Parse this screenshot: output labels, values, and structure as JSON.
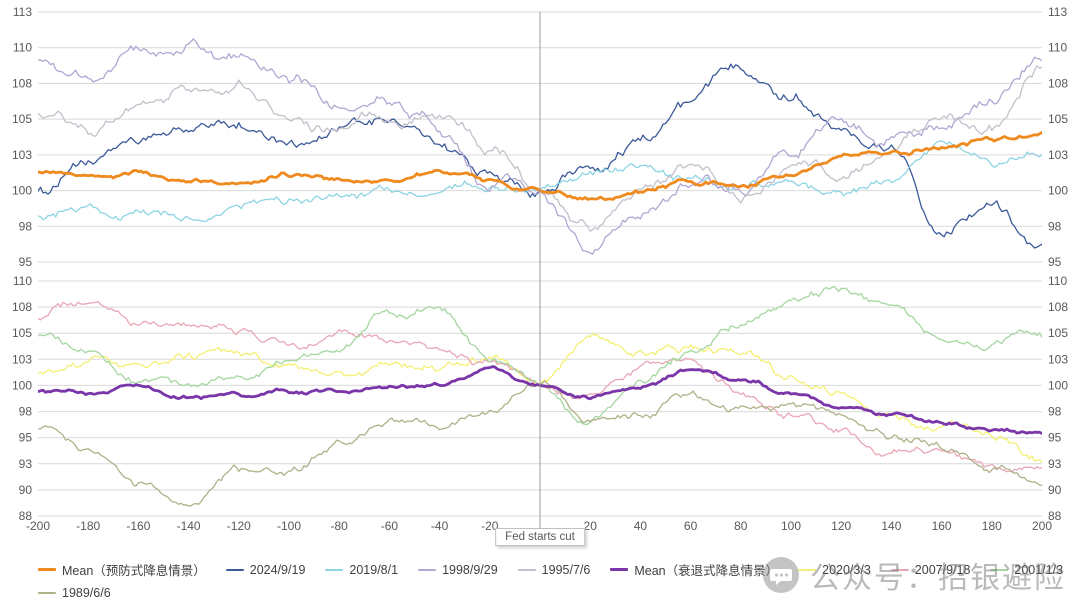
{
  "chart_data": {
    "type": "line",
    "title": "",
    "x_range": [
      -200,
      200
    ],
    "x_tick_step": 20,
    "anchor_step": 20,
    "x_tick_labels": [
      "-200",
      "-180",
      "-160",
      "-140",
      "-120",
      "-100",
      "-80",
      "-60",
      "-40",
      "-20",
      "",
      "20",
      "40",
      "60",
      "80",
      "100",
      "120",
      "140",
      "160",
      "180",
      "200"
    ],
    "event_line_x": 0,
    "event_label": "Fed starts cut",
    "grid_color": "#d9d9d9",
    "event_line_color": "#9b9b9b",
    "panels": [
      {
        "id": "preventive-cut-panel",
        "y_min": 95,
        "y_max": 112.5,
        "ticks": [
          95,
          97.5,
          100,
          102.5,
          105,
          107.5,
          110,
          112.5
        ],
        "tick_labels": [
          "95",
          "98",
          "100",
          "103",
          "105",
          "108",
          "110",
          "113"
        ],
        "series": [
          {
            "id": "2024-09-19",
            "name": "2024/9/19",
            "color": "#3c5a9a",
            "width": 1.3,
            "jitter": 0.5,
            "anchors": [
              100.5,
              102.0,
              103.8,
              104.6,
              104.8,
              104.0,
              105.0,
              105.2,
              103.3,
              101.3,
              100.0,
              101.8,
              104.2,
              106.2,
              108.8,
              107.3,
              105.8,
              104.0,
              98.5,
              100.5,
              97.0
            ]
          },
          {
            "id": "2019-08-01",
            "name": "2019/8/1",
            "color": "#8ed4e3",
            "width": 1.3,
            "jitter": 0.4,
            "anchors": [
              98.3,
              99.0,
              98.4,
              97.9,
              99.0,
              99.3,
              99.5,
              99.8,
              99.2,
              100.1,
              100.0,
              100.4,
              100.8,
              100.2,
              99.8,
              100.3,
              99.6,
              100.2,
              102.6,
              101.4,
              102.6
            ]
          },
          {
            "id": "1998-09-29",
            "name": "1998/9/29",
            "color": "#b2a7d2",
            "width": 1.3,
            "jitter": 0.55,
            "anchors": [
              108.3,
              107.3,
              109.8,
              110.6,
              109.3,
              108.0,
              105.6,
              106.6,
              105.0,
              101.2,
              100.0,
              96.6,
              98.6,
              100.6,
              100.0,
              102.6,
              104.6,
              103.2,
              104.6,
              105.6,
              108.4
            ]
          },
          {
            "id": "1995-07-06",
            "name": "1995/7/6",
            "color": "#c2c0cb",
            "width": 1.3,
            "jitter": 0.5,
            "anchors": [
              104.6,
              103.2,
              105.4,
              106.6,
              106.8,
              104.2,
              103.6,
              104.6,
              106.0,
              103.0,
              100.0,
              97.6,
              99.6,
              101.2,
              99.6,
              101.6,
              100.6,
              102.2,
              104.6,
              103.4,
              107.6
            ]
          },
          {
            "id": "mean-preventive",
            "name": "Mean（预防式降息情景）",
            "color": "#ef8a1e",
            "width": 2.8,
            "jitter": 0.22,
            "anchors": [
              101.0,
              100.8,
              101.2,
              100.4,
              100.3,
              100.9,
              100.6,
              100.4,
              101.4,
              100.7,
              100.0,
              99.2,
              99.6,
              100.3,
              100.2,
              101.0,
              102.2,
              102.6,
              103.1,
              103.6,
              104.0
            ]
          }
        ]
      },
      {
        "id": "recession-cut-panel",
        "y_min": 87.5,
        "y_max": 110,
        "ticks": [
          87.5,
          90,
          92.5,
          95,
          97.5,
          100,
          102.5,
          105,
          107.5,
          110
        ],
        "tick_labels": [
          "88",
          "90",
          "93",
          "95",
          "98",
          "100",
          "103",
          "105",
          "108",
          "110"
        ],
        "series": [
          {
            "id": "2020-03-03",
            "name": "2020/3/3",
            "color": "#f5ef72",
            "width": 1.3,
            "jitter": 0.55,
            "anchors": [
              101.0,
              101.5,
              101.3,
              101.8,
              102.0,
              101.5,
              101.3,
              101.0,
              101.5,
              102.2,
              100.0,
              104.4,
              103.4,
              103.8,
              103.4,
              100.6,
              99.0,
              97.4,
              95.6,
              95.0,
              92.6
            ]
          },
          {
            "id": "2007-09-18",
            "name": "2007/9/18",
            "color": "#e9a7b4",
            "width": 1.3,
            "jitter": 0.5,
            "anchors": [
              106.0,
              107.6,
              105.4,
              105.0,
              104.4,
              103.4,
              104.6,
              104.0,
              103.4,
              102.4,
              100.0,
              99.0,
              100.6,
              101.4,
              99.0,
              97.4,
              96.0,
              92.6,
              92.0,
              91.0,
              91.6
            ]
          },
          {
            "id": "2001-01-03",
            "name": "2001/1/3",
            "color": "#a5d6a0",
            "width": 1.3,
            "jitter": 0.5,
            "anchors": [
              104.6,
              103.0,
              100.4,
              99.6,
              101.0,
              102.2,
              103.6,
              106.6,
              107.4,
              103.0,
              100.0,
              96.4,
              100.0,
              103.0,
              105.4,
              107.4,
              108.4,
              107.0,
              104.4,
              103.4,
              104.6
            ]
          },
          {
            "id": "1989-06-06",
            "name": "1989/6/6",
            "color": "#b0b089",
            "width": 1.3,
            "jitter": 0.5,
            "anchors": [
              95.4,
              93.4,
              90.4,
              89.0,
              91.4,
              90.6,
              93.4,
              95.4,
              95.0,
              97.4,
              100.0,
              97.0,
              96.4,
              98.4,
              97.4,
              98.0,
              96.4,
              94.4,
              93.4,
              92.0,
              91.4
            ]
          },
          {
            "id": "mean-recession",
            "name": "Mean（衰退式降息情景）",
            "color": "#7a35a8",
            "width": 2.8,
            "jitter": 0.25,
            "anchors": [
              99.5,
              99.3,
              100.3,
              99.2,
              99.1,
              99.6,
              100.0,
              100.3,
              100.5,
              101.8,
              100.0,
              98.9,
              99.6,
              101.2,
              100.4,
              99.4,
              98.0,
              96.9,
              96.1,
              95.4,
              95.2
            ]
          }
        ]
      }
    ],
    "legend": {
      "rows": [
        [
          {
            "id": "mean-preventive",
            "label": "Mean（预防式降息情景）",
            "color": "#ef8a1e",
            "thick": true
          },
          {
            "id": "2024-09-19",
            "label": "2024/9/19",
            "color": "#3c5a9a",
            "thick": false
          },
          {
            "id": "2019-08-01",
            "label": "2019/8/1",
            "color": "#8ed4e3",
            "thick": false
          },
          {
            "id": "1998-09-29",
            "label": "1998/9/29",
            "color": "#b2a7d2",
            "thick": false
          },
          {
            "id": "1995-07-06",
            "label": "1995/7/6",
            "color": "#c2c0cb",
            "thick": false
          },
          {
            "id": "mean-recession",
            "label": "Mean（衰退式降息情景）",
            "color": "#7a35a8",
            "thick": true
          },
          {
            "id": "2020-03-03",
            "label": "2020/3/3",
            "color": "#f5ef72",
            "thick": false
          },
          {
            "id": "2007-09-18",
            "label": "2007/9/18",
            "color": "#e9a7b4",
            "thick": false
          },
          {
            "id": "2001-01-03",
            "label": "2001/1/3",
            "color": "#a5d6a0",
            "thick": false
          }
        ],
        [
          {
            "id": "1989-06-06",
            "label": "1989/6/6",
            "color": "#b0b089",
            "thick": false
          }
        ]
      ]
    }
  },
  "watermark": {
    "text": "公众号：招银避险"
  }
}
